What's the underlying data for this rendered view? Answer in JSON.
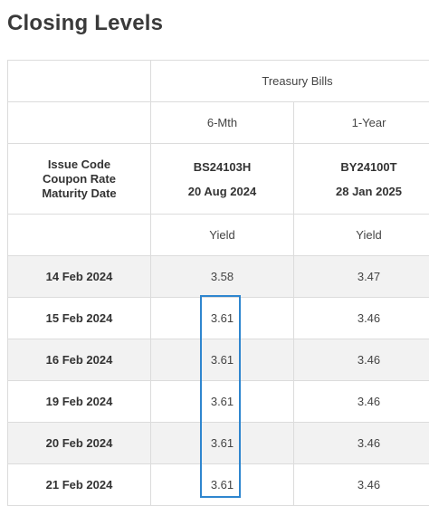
{
  "page": {
    "title": "Closing Levels"
  },
  "table": {
    "group_header": "Treasury Bills",
    "tenors": [
      "6-Mth",
      "1-Year"
    ],
    "row_label": {
      "line1": "Issue Code",
      "line2": "Coupon Rate",
      "line3": "Maturity Date"
    },
    "issues": [
      {
        "code": "BS24103H",
        "maturity": "20 Aug 2024",
        "metric": "Yield"
      },
      {
        "code": "BY24100T",
        "maturity": "28 Jan 2025",
        "metric": "Yield"
      }
    ],
    "rows": [
      {
        "date": "14 Feb 2024",
        "values": [
          "3.58",
          "3.47"
        ]
      },
      {
        "date": "15 Feb 2024",
        "values": [
          "3.61",
          "3.46"
        ]
      },
      {
        "date": "16 Feb 2024",
        "values": [
          "3.61",
          "3.46"
        ]
      },
      {
        "date": "19 Feb 2024",
        "values": [
          "3.61",
          "3.46"
        ]
      },
      {
        "date": "20 Feb 2024",
        "values": [
          "3.61",
          "3.46"
        ]
      },
      {
        "date": "21 Feb 2024",
        "values": [
          "3.61",
          "3.46"
        ]
      }
    ]
  },
  "colors": {
    "highlight_border": "#2f86cf",
    "shaded_row": "#f2f2f2",
    "grid": "#dcdcdc"
  }
}
